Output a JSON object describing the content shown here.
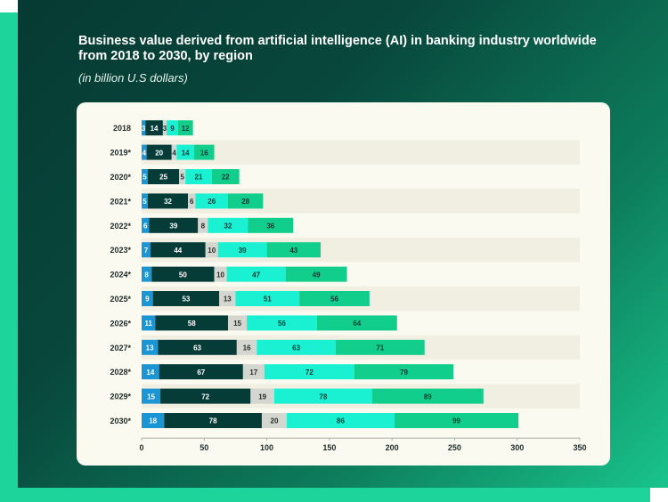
{
  "header": {
    "title": "Business value derived from artificial intelligence (AI) in banking industry worldwide from 2018 to 2030, by region",
    "subtitle": "(in billion U.S dollars)"
  },
  "colors": {
    "seg1": "#1b95d4",
    "seg2": "#063c38",
    "seg3": "#d4d6d0",
    "seg4": "#1af0d2",
    "seg5": "#12ce8c",
    "stripe": "#f1efe1",
    "panel": "#fbfaf1"
  },
  "chart_data": {
    "type": "bar",
    "orientation": "horizontal",
    "stacked": true,
    "categories": [
      "2018",
      "2019*",
      "2020*",
      "2021*",
      "2022*",
      "2023*",
      "2024*",
      "2025*",
      "2026*",
      "2027*",
      "2028*",
      "2029*",
      "2030*"
    ],
    "series": [
      {
        "values": [
          3,
          4,
          5,
          5,
          6,
          7,
          8,
          9,
          11,
          13,
          14,
          15,
          18
        ]
      },
      {
        "values": [
          14,
          20,
          25,
          32,
          39,
          44,
          50,
          53,
          58,
          63,
          67,
          72,
          78
        ]
      },
      {
        "values": [
          3,
          4,
          5,
          6,
          8,
          10,
          10,
          13,
          15,
          16,
          17,
          19,
          20
        ]
      },
      {
        "values": [
          9,
          14,
          21,
          26,
          32,
          39,
          47,
          51,
          56,
          63,
          72,
          78,
          86
        ]
      },
      {
        "values": [
          12,
          16,
          22,
          28,
          36,
          43,
          49,
          56,
          64,
          71,
          79,
          89,
          99
        ]
      }
    ],
    "xlim": [
      0,
      350
    ],
    "xticks": [
      "0",
      "50",
      "100",
      "150",
      "200",
      "250",
      "300",
      "350"
    ],
    "grid": false
  }
}
